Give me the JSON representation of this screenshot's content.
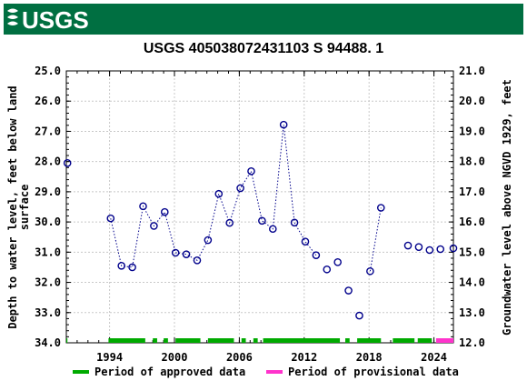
{
  "header": {
    "logo_text": "USGS",
    "brand_color": "#006f41"
  },
  "chart_data": {
    "type": "scatter",
    "title": "USGS 405038072431103 S 94488. 1",
    "ylabel_left_lines": [
      "Depth to water level, feet below land",
      "surface"
    ],
    "ylabel_right": "Groundwater level above NGVD 1929, feet",
    "x_ticks": [
      "1994",
      "2000",
      "2006",
      "2012",
      "2018",
      "2024"
    ],
    "x_tick_years": [
      1994,
      2000,
      2006,
      2012,
      2018,
      2024
    ],
    "xlim": [
      1990.0,
      2025.8
    ],
    "y_left_lim": [
      25.0,
      34.0
    ],
    "y_left_ticks": [
      "25.0",
      "26.0",
      "27.0",
      "28.0",
      "29.0",
      "30.0",
      "31.0",
      "32.0",
      "33.0",
      "34.0"
    ],
    "y_right_lim": [
      21.0,
      12.0
    ],
    "y_right_ticks": [
      "21.0",
      "20.0",
      "19.0",
      "18.0",
      "17.0",
      "16.0",
      "15.0",
      "14.0",
      "13.0",
      "12.0"
    ],
    "grid": true,
    "point_color": "#00008b",
    "points": [
      {
        "x": 1990.1,
        "y": 28.05
      },
      {
        "x": 1994.1,
        "y": 29.88
      },
      {
        "x": 1995.1,
        "y": 31.45
      },
      {
        "x": 1996.1,
        "y": 31.5
      },
      {
        "x": 1997.1,
        "y": 29.48
      },
      {
        "x": 1998.1,
        "y": 30.13
      },
      {
        "x": 1999.1,
        "y": 29.67
      },
      {
        "x": 2000.1,
        "y": 31.02
      },
      {
        "x": 2001.1,
        "y": 31.07
      },
      {
        "x": 2002.1,
        "y": 31.27
      },
      {
        "x": 2003.1,
        "y": 30.6
      },
      {
        "x": 2004.1,
        "y": 29.07
      },
      {
        "x": 2005.1,
        "y": 30.03
      },
      {
        "x": 2006.1,
        "y": 28.88
      },
      {
        "x": 2007.1,
        "y": 28.32
      },
      {
        "x": 2008.1,
        "y": 29.96
      },
      {
        "x": 2009.1,
        "y": 30.23
      },
      {
        "x": 2010.1,
        "y": 26.78
      },
      {
        "x": 2011.1,
        "y": 30.02
      },
      {
        "x": 2012.1,
        "y": 30.65
      },
      {
        "x": 2013.1,
        "y": 31.1
      },
      {
        "x": 2014.1,
        "y": 31.57
      },
      {
        "x": 2015.1,
        "y": 31.33
      },
      {
        "x": 2016.1,
        "y": 32.27
      },
      {
        "x": 2017.1,
        "y": 33.1
      },
      {
        "x": 2018.1,
        "y": 31.63
      },
      {
        "x": 2019.1,
        "y": 29.53
      },
      {
        "x": 2021.6,
        "y": 30.78
      },
      {
        "x": 2022.6,
        "y": 30.83
      },
      {
        "x": 2023.6,
        "y": 30.93
      },
      {
        "x": 2024.6,
        "y": 30.9
      },
      {
        "x": 2025.8,
        "y": 30.87
      }
    ],
    "dotted_segments": [
      [
        1,
        20
      ],
      [
        25,
        26
      ]
    ],
    "period_bar": {
      "approved_color": "#00aa00",
      "provisional_color": "#ff33cc",
      "approved": [
        [
          1989.7,
          1990.1
        ],
        [
          1993.9,
          1997.3
        ],
        [
          1998.0,
          1998.4
        ],
        [
          1999.0,
          1999.4
        ],
        [
          2000.1,
          2002.4
        ],
        [
          2003.1,
          2005.5
        ],
        [
          2006.2,
          2006.6
        ],
        [
          2007.3,
          2007.7
        ],
        [
          2008.2,
          2015.3
        ],
        [
          2015.8,
          2016.2
        ],
        [
          2016.9,
          2019.1
        ],
        [
          2020.2,
          2022.2
        ],
        [
          2022.5,
          2023.8
        ]
      ],
      "provisional": [
        [
          2024.2,
          2025.8
        ]
      ]
    },
    "legend": {
      "placement": "bottom",
      "entries": [
        {
          "label": "Period of approved data",
          "color": "#00aa00"
        },
        {
          "label": "Period of provisional data",
          "color": "#ff33cc"
        }
      ]
    }
  }
}
